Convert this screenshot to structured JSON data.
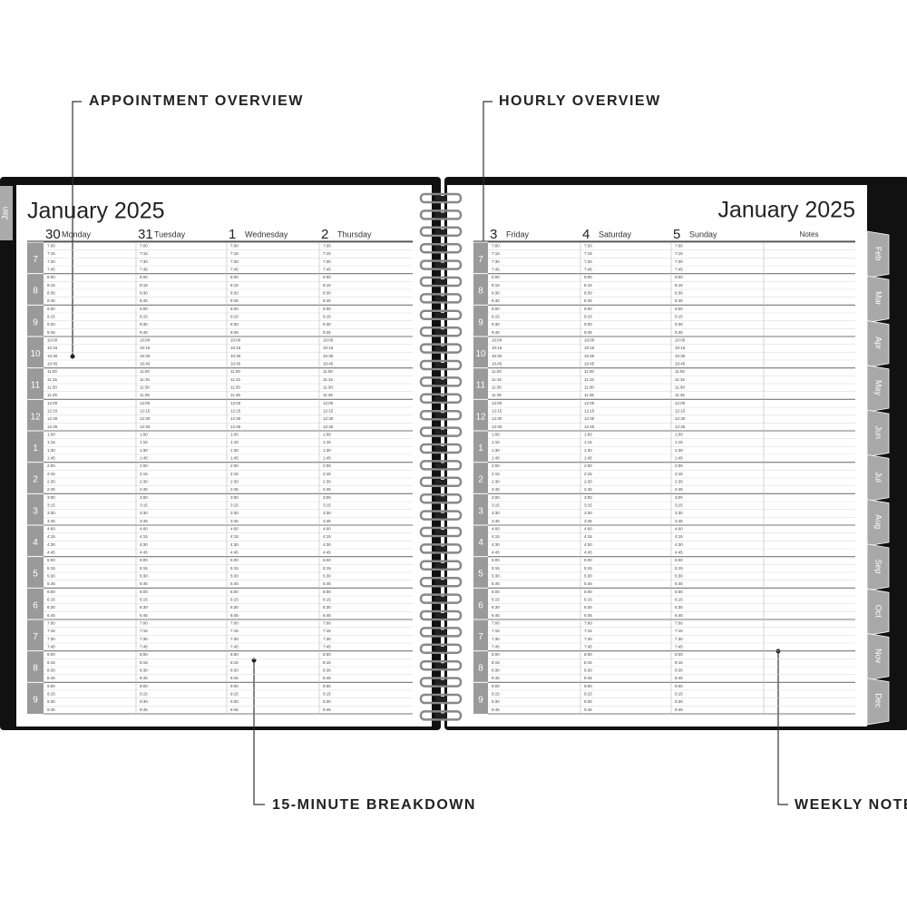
{
  "callouts": [
    "APPOINTMENT OVERVIEW",
    "HOURLY OVERVIEW",
    "15-MINUTE BREAKDOWN",
    "WEEKLY NOTES"
  ],
  "left_page": {
    "title": "January 2025",
    "tab": "Jan",
    "days": [
      {
        "number": "30",
        "name": "Monday"
      },
      {
        "number": "31",
        "name": "Tuesday"
      },
      {
        "number": "1",
        "name": "Wednesday"
      },
      {
        "number": "2",
        "name": "Thursday"
      }
    ]
  },
  "right_page": {
    "title": "January 2025",
    "notes": "Notes",
    "days": [
      {
        "number": "3",
        "name": "Friday"
      },
      {
        "number": "4",
        "name": "Saturday"
      },
      {
        "number": "5",
        "name": "Sunday"
      }
    ],
    "tabs": [
      "Feb",
      "Mar",
      "Apr",
      "May",
      "Jun",
      "Jul",
      "Aug",
      "Sep",
      "Oct",
      "Nov",
      "Dec"
    ]
  },
  "hours": [
    "7",
    "8",
    "9",
    "10",
    "11",
    "12",
    "1",
    "2",
    "3",
    "4",
    "5",
    "6",
    "7",
    "8",
    "9"
  ],
  "slots": [
    "7:00",
    "7:15",
    "7:30",
    "7:45",
    "8:00",
    "8:15",
    "8:30",
    "8:45",
    "9:00",
    "9:15",
    "9:30",
    "9:45",
    "10:00",
    "10:15",
    "10:30",
    "10:45",
    "11:00",
    "11:15",
    "11:30",
    "11:45",
    "12:00",
    "12:15",
    "12:30",
    "12:45",
    "1:00",
    "1:15",
    "1:30",
    "1:45",
    "2:00",
    "2:15",
    "2:30",
    "2:45",
    "3:00",
    "3:15",
    "3:30",
    "3:45",
    "4:00",
    "4:15",
    "4:30",
    "4:45",
    "5:00",
    "5:15",
    "5:30",
    "5:45",
    "6:00",
    "6:15",
    "6:30",
    "6:45",
    "7:00",
    "7:15",
    "7:30",
    "7:45",
    "8:00",
    "8:15",
    "8:30",
    "8:45",
    "9:00",
    "9:15",
    "9:30",
    "9:45"
  ]
}
